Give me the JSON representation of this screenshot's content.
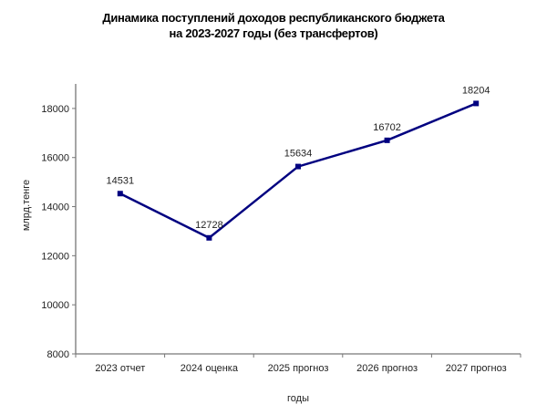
{
  "chart_data": {
    "type": "line",
    "title_lines": [
      "Динамика поступлений доходов республиканского бюджета",
      "на 2023-2027 годы (без трансфертов)"
    ],
    "xlabel": "годы",
    "ylabel": "млрд.тенге",
    "categories": [
      "2023 отчет",
      "2024 оценка",
      "2025 прогноз",
      "2026 прогноз",
      "2027 прогноз"
    ],
    "values": [
      14531,
      12728,
      15634,
      16702,
      18204
    ],
    "data_labels": [
      "14531",
      "12728",
      "15634",
      "16702",
      "18204"
    ],
    "ylim": [
      8000,
      19000
    ],
    "yticks": [
      8000,
      10000,
      12000,
      14000,
      16000,
      18000
    ],
    "ytick_labels": [
      "8000",
      "10000",
      "12000",
      "14000",
      "16000",
      "18000"
    ],
    "grid": false,
    "legend": "none",
    "line_color": "#000080",
    "marker": "square"
  }
}
